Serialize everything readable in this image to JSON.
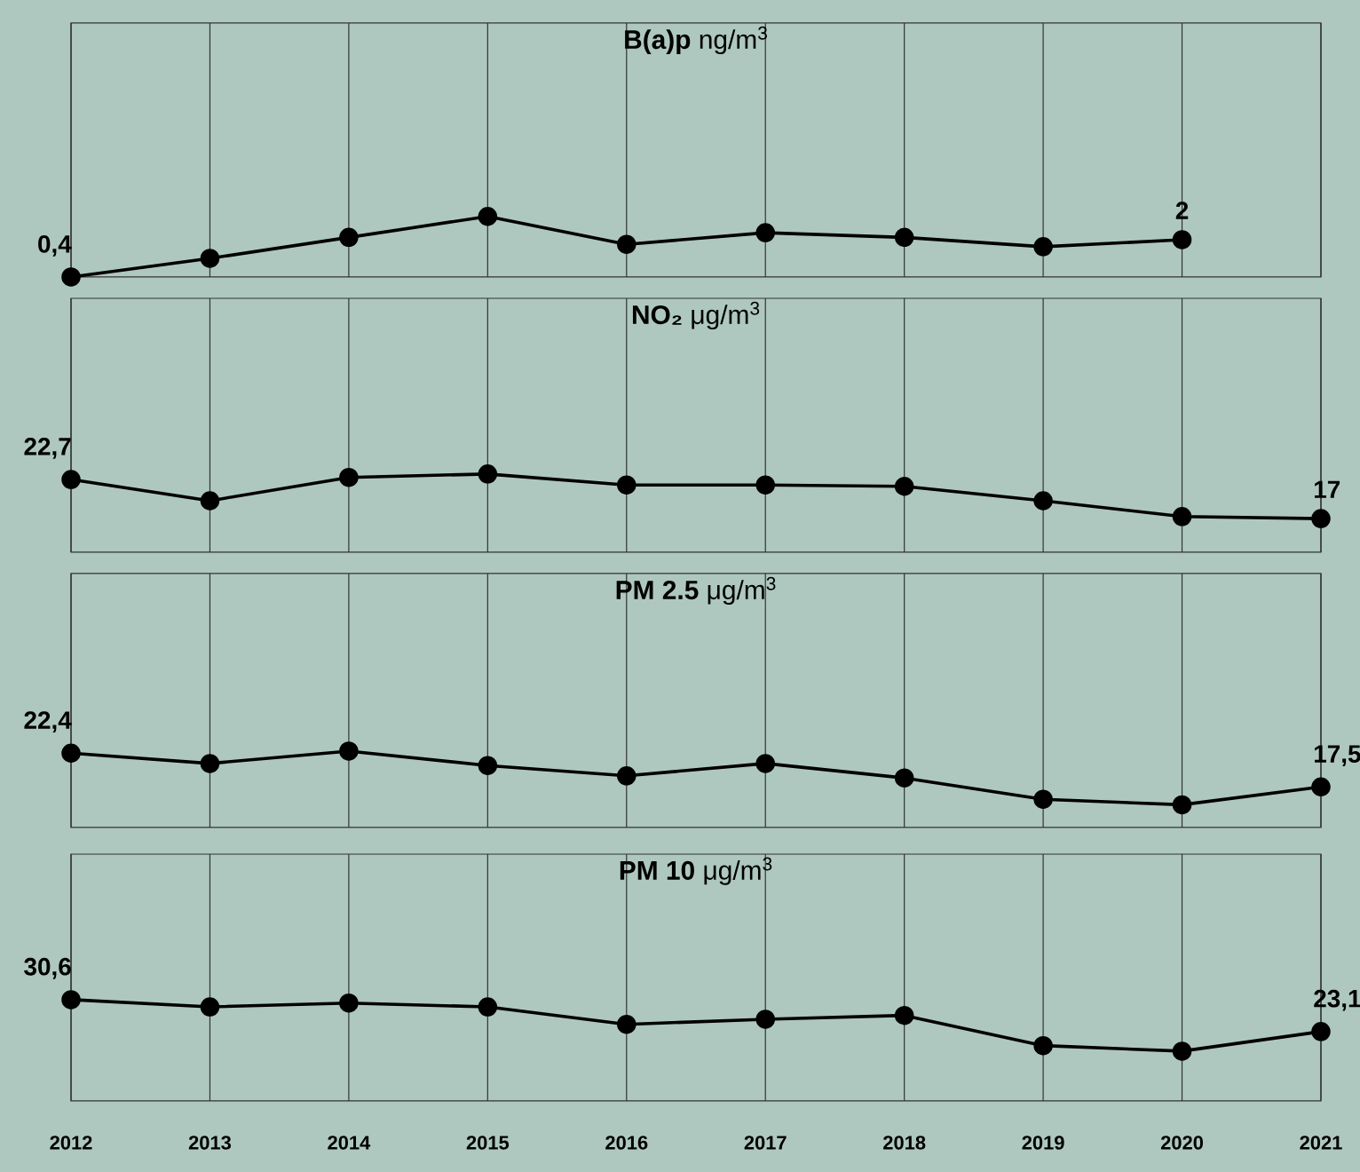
{
  "chart_data": [
    {
      "type": "line",
      "title": "**B(a)p** ng/m$^{3}$",
      "categories": [
        "2012",
        "2013",
        "2014",
        "2015",
        "2016",
        "2017",
        "2018",
        "2019",
        "2020",
        "2021"
      ],
      "tick_labels": false,
      "grid": "x",
      "marker": "circle",
      "series": [
        {
          "color": "#000000",
          "values": [
            0.4,
            1.2,
            2.1,
            3.0,
            1.8,
            2.3,
            2.1,
            1.7,
            2,
            null
          ],
          "value_labels": [
            "0,4",
            null,
            null,
            null,
            null,
            null,
            null,
            null,
            "2",
            null
          ]
        }
      ],
      "ylim": [
        0.4,
        11.3
      ]
    },
    {
      "type": "line",
      "title": "**NO₂** μg/m$^{3}$",
      "categories": [
        "2012",
        "2013",
        "2014",
        "2015",
        "2016",
        "2017",
        "2018",
        "2019",
        "2020",
        "2021"
      ],
      "tick_labels": false,
      "grid": "x",
      "marker": "circle",
      "series": [
        {
          "color": "#000000",
          "values": [
            22.7,
            19.6,
            23.0,
            23.5,
            21.9,
            21.9,
            21.7,
            19.6,
            17.3,
            17
          ],
          "value_labels": [
            "22,7",
            null,
            null,
            null,
            null,
            null,
            null,
            null,
            null,
            "17"
          ]
        }
      ],
      "ylim": [
        12.1,
        49.1
      ]
    },
    {
      "type": "line",
      "title": "**PM 2.5** μg/m$^{3}$",
      "categories": [
        "2012",
        "2013",
        "2014",
        "2015",
        "2016",
        "2017",
        "2018",
        "2019",
        "2020",
        "2021"
      ],
      "tick_labels": false,
      "grid": "x",
      "marker": "circle",
      "series": [
        {
          "color": "#000000",
          "values": [
            22.4,
            20.9,
            22.7,
            20.6,
            19.1,
            20.9,
            18.8,
            15.7,
            14.9,
            17.5
          ],
          "value_labels": [
            "22,4",
            null,
            null,
            null,
            null,
            null,
            null,
            null,
            null,
            "17,5"
          ]
        }
      ],
      "ylim": [
        11.6,
        48.5
      ]
    },
    {
      "type": "line",
      "title": "**PM 10** μg/m$^{3}$",
      "categories": [
        "2012",
        "2013",
        "2014",
        "2015",
        "2016",
        "2017",
        "2018",
        "2019",
        "2020",
        "2021"
      ],
      "tick_labels": "x",
      "grid": "x",
      "marker": "circle",
      "series": [
        {
          "color": "#000000",
          "values": [
            30.6,
            28.9,
            29.8,
            28.9,
            24.8,
            26.0,
            26.9,
            19.8,
            18.5,
            23.1
          ],
          "value_labels": [
            "30,6",
            null,
            null,
            null,
            null,
            null,
            null,
            null,
            null,
            "23,1"
          ]
        }
      ],
      "ylim": [
        6.8,
        64.8
      ]
    }
  ]
}
